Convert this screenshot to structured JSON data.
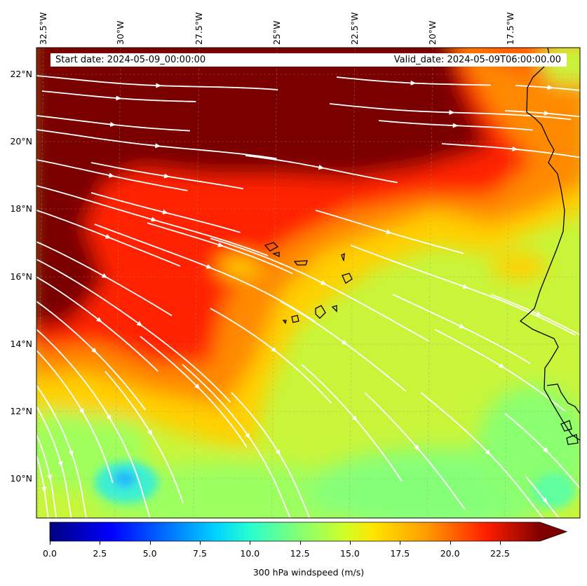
{
  "header": {
    "start_date": "Start date: 2024-05-09_00:00:00",
    "valid_date": "Valid_date: 2024-05-09T06:00:00.00"
  },
  "axes": {
    "lon_ticks": [
      "32.5°W",
      "30°W",
      "27.5°W",
      "25°W",
      "22.5°W",
      "20°W",
      "17.5°W"
    ],
    "lat_ticks": [
      "22°N",
      "20°N",
      "18°N",
      "16°N",
      "14°N",
      "12°N",
      "10°N"
    ]
  },
  "colorbar": {
    "label": "300 hPa windspeed (m/s)",
    "ticks": [
      "0.0",
      "2.5",
      "5.0",
      "7.5",
      "10.0",
      "12.5",
      "15.0",
      "17.5",
      "20.0",
      "22.5"
    ],
    "range": [
      0,
      24.5
    ],
    "extend": "max",
    "colormap": "jet"
  },
  "colors": {
    "jet_max": "#800000",
    "streamline": "#ffffff",
    "coastline": "#000000"
  }
}
